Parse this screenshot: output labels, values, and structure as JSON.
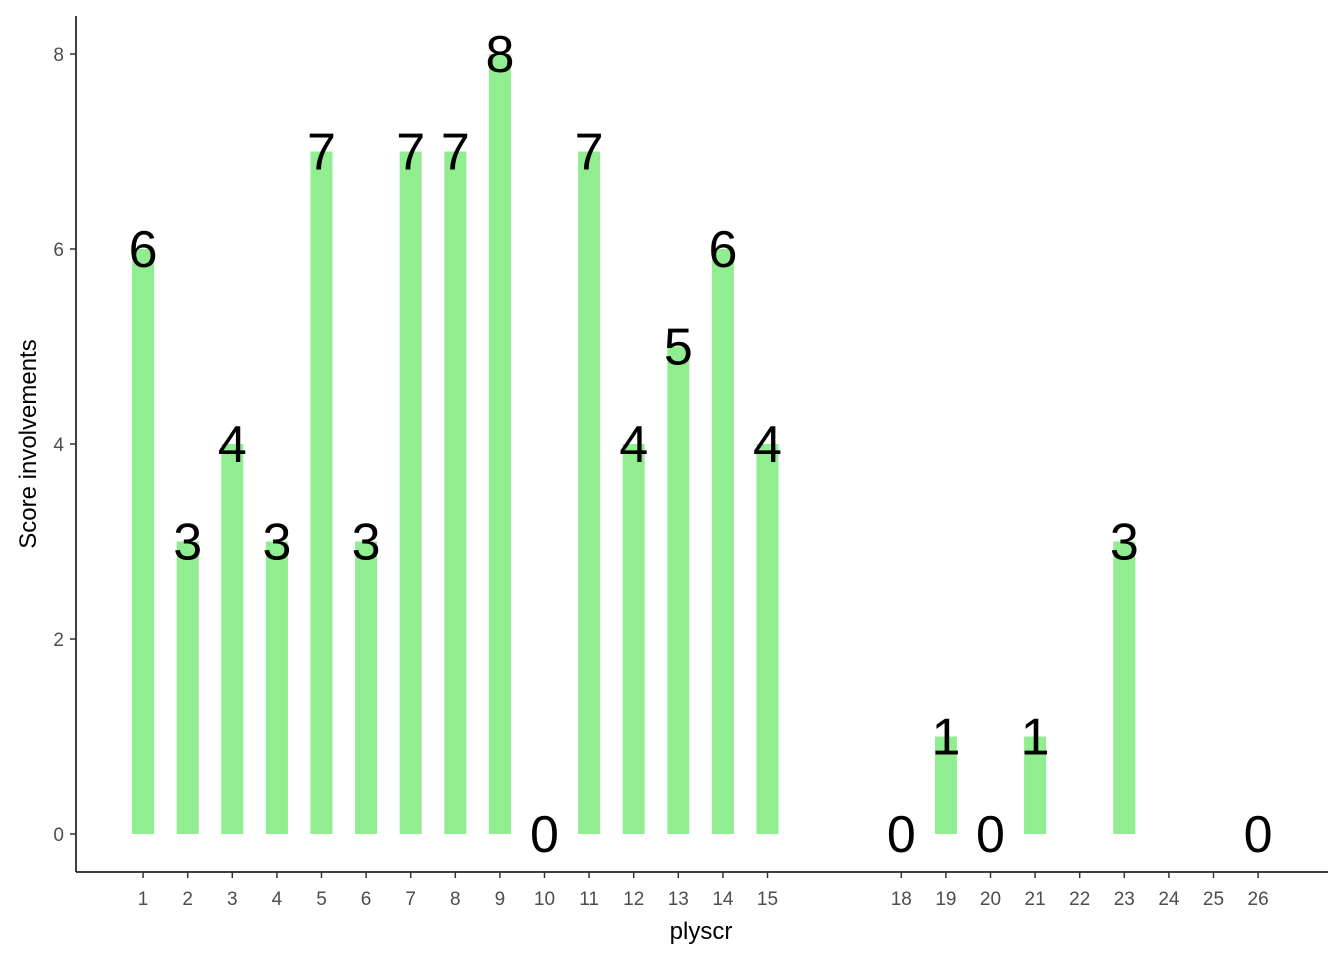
{
  "chart_data": {
    "type": "bar",
    "title": "",
    "xlabel": "plyscr",
    "ylabel": "Score involvements",
    "ylim": [
      0,
      8.2
    ],
    "yticks": [
      0,
      2,
      4,
      6,
      8
    ],
    "x_ticks": [
      1,
      2,
      3,
      4,
      5,
      6,
      7,
      8,
      9,
      10,
      11,
      12,
      13,
      14,
      15,
      18,
      19,
      20,
      21,
      22,
      23,
      24,
      25,
      26
    ],
    "x_range": [
      0,
      27.5
    ],
    "bars": [
      {
        "x": 1,
        "value": 6,
        "label": "6"
      },
      {
        "x": 2,
        "value": 3,
        "label": "3"
      },
      {
        "x": 3,
        "value": 4,
        "label": "4"
      },
      {
        "x": 4,
        "value": 3,
        "label": "3"
      },
      {
        "x": 5,
        "value": 7,
        "label": "7"
      },
      {
        "x": 6,
        "value": 3,
        "label": "3"
      },
      {
        "x": 7,
        "value": 7,
        "label": "7"
      },
      {
        "x": 8,
        "value": 7,
        "label": "7"
      },
      {
        "x": 9,
        "value": 8,
        "label": "8"
      },
      {
        "x": 10,
        "value": 0,
        "label": "0"
      },
      {
        "x": 11,
        "value": 7,
        "label": "7"
      },
      {
        "x": 12,
        "value": 4,
        "label": "4"
      },
      {
        "x": 13,
        "value": 5,
        "label": "5"
      },
      {
        "x": 14,
        "value": 6,
        "label": "6"
      },
      {
        "x": 15,
        "value": 4,
        "label": "4"
      },
      {
        "x": 18,
        "value": 0,
        "label": "0"
      },
      {
        "x": 19,
        "value": 1,
        "label": "1"
      },
      {
        "x": 20,
        "value": 0,
        "label": "0"
      },
      {
        "x": 21,
        "value": 1,
        "label": "1"
      },
      {
        "x": 23,
        "value": 3,
        "label": "3"
      },
      {
        "x": 26,
        "value": 0,
        "label": "0"
      }
    ],
    "bar_color": "#90ee90",
    "grid": false,
    "legend": "none"
  }
}
